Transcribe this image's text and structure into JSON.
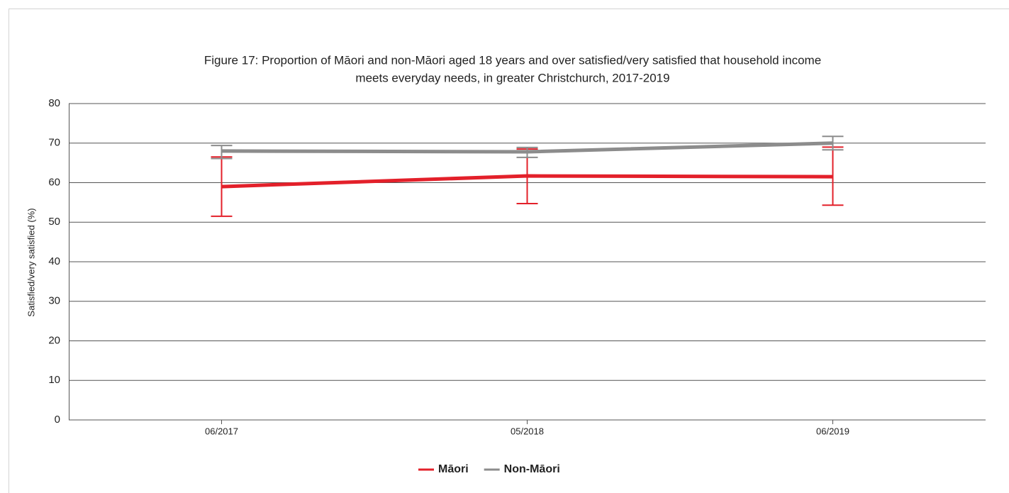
{
  "chart_data": {
    "type": "line",
    "title": [
      "Figure 17: Proportion of Māori and non-Māori aged 18 years and over satisfied/very satisfied that household income",
      "meets everyday needs, in greater Christchurch, 2017-2019"
    ],
    "y_label": "Satisfied/very satisfied (%)",
    "categories": [
      "06/2017",
      "05/2018",
      "06/2019"
    ],
    "series": [
      {
        "name": "Māori",
        "color": "#e3202a",
        "values": [
          59,
          61.7,
          61.5
        ],
        "lower": [
          51.5,
          54.7,
          54.3
        ],
        "upper": [
          66.5,
          68.5,
          69
        ]
      },
      {
        "name": "Non-Māori",
        "color": "#8c8c8c",
        "values": [
          68,
          67.8,
          70
        ],
        "lower": [
          66.1,
          66.4,
          68.3
        ],
        "upper": [
          69.4,
          68.9,
          71.7
        ]
      }
    ],
    "ylim": [
      0,
      80
    ],
    "yticks": [
      0,
      10,
      20,
      30,
      40,
      50,
      60,
      70,
      80
    ],
    "grid": true,
    "legend": "bottom"
  }
}
